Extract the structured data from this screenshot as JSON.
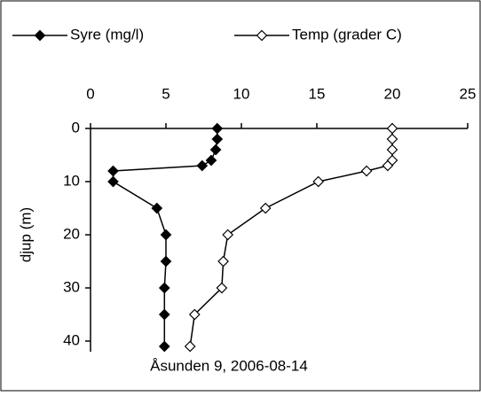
{
  "chart_data": {
    "type": "line",
    "annotation": "Åsunden 9,  2006-08-14",
    "y_label": "djup (m)",
    "xlim": [
      0,
      25
    ],
    "xticks": [
      0,
      5,
      10,
      15,
      20,
      25
    ],
    "ylim": [
      0,
      42
    ],
    "yticks": [
      0,
      10,
      20,
      30,
      40
    ],
    "y_inverted": true,
    "x_axis_top": true,
    "legend": "top",
    "y": [
      0,
      2,
      4,
      6,
      7,
      8,
      10,
      15,
      20,
      25,
      30,
      35,
      41
    ],
    "series": [
      {
        "name": "Syre (mg/l)",
        "color": "#000000",
        "values": [
          8.4,
          8.4,
          8.3,
          8.0,
          7.4,
          1.5,
          1.5,
          4.4,
          5.0,
          5.0,
          4.9,
          4.9,
          4.9
        ]
      },
      {
        "name": "Temp (grader C)",
        "color": "#ffffff",
        "values": [
          20.0,
          20.0,
          20.0,
          20.0,
          19.7,
          18.3,
          15.1,
          11.6,
          9.1,
          8.8,
          8.7,
          6.9,
          6.6
        ]
      }
    ]
  }
}
